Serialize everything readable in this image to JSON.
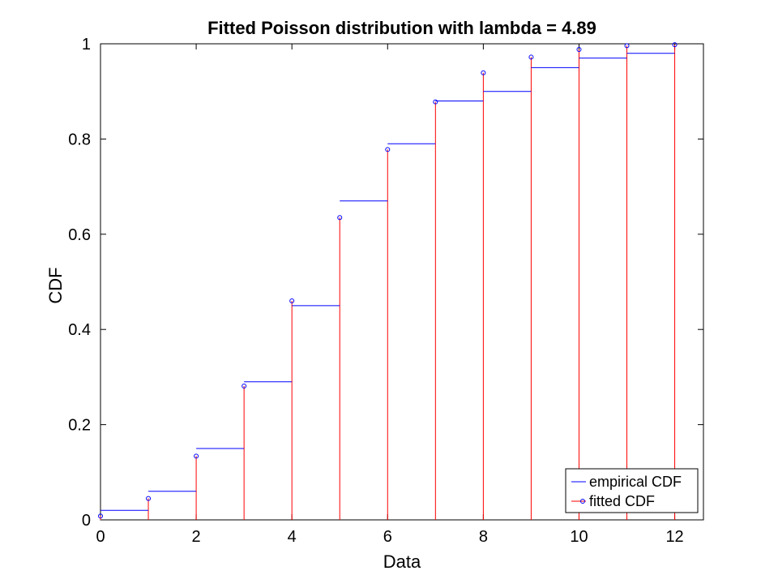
{
  "chart_data": {
    "type": "line",
    "title": "Fitted Poisson distribution with lambda = 4.89",
    "xlabel": "Data",
    "ylabel": "CDF",
    "xlim": [
      0,
      12.6
    ],
    "ylim": [
      0,
      1
    ],
    "xticks": [
      0,
      2,
      4,
      6,
      8,
      10,
      12
    ],
    "yticks": [
      0,
      0.2,
      0.4,
      0.6,
      0.8,
      1
    ],
    "ytick_labels": [
      "0",
      "0.2",
      "0.4",
      "0.6",
      "0.8",
      "1"
    ],
    "grid": false,
    "legend_position": "bottom-right",
    "series": [
      {
        "name": "empirical CDF",
        "color": "#0000ff",
        "style": "stairs",
        "x": [
          0,
          1,
          2,
          3,
          4,
          5,
          6,
          7,
          8,
          9,
          10,
          11,
          12
        ],
        "y": [
          0.02,
          0.06,
          0.15,
          0.29,
          0.45,
          0.67,
          0.79,
          0.88,
          0.9,
          0.95,
          0.97,
          0.98,
          1.0
        ]
      },
      {
        "name": "fitted CDF",
        "color": "#ff0000",
        "marker_color": "#0000ff",
        "style": "stem",
        "marker": "circle",
        "x": [
          0,
          1,
          2,
          3,
          4,
          5,
          6,
          7,
          8,
          9,
          10,
          11,
          12
        ],
        "y": [
          0.008,
          0.045,
          0.134,
          0.281,
          0.46,
          0.635,
          0.778,
          0.878,
          0.939,
          0.972,
          0.988,
          0.996,
          0.998
        ]
      }
    ]
  }
}
